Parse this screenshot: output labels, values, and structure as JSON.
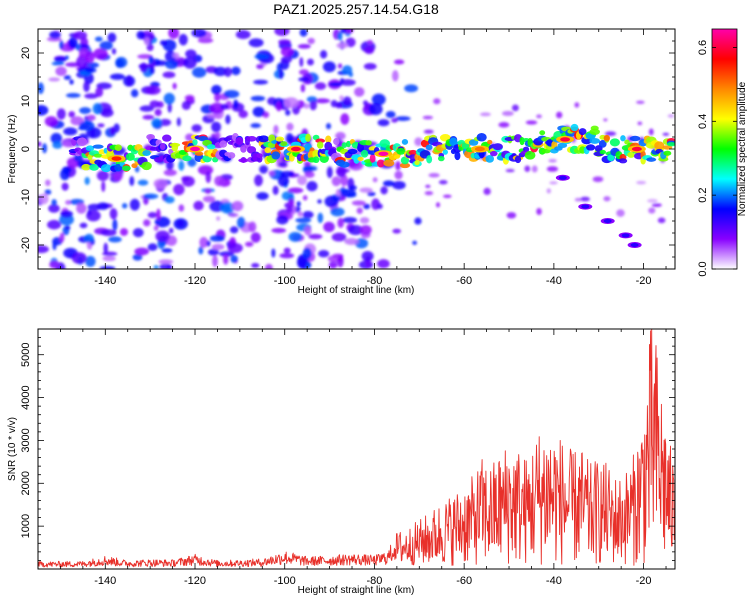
{
  "title": "PAZ1.2025.257.14.54.G18",
  "chart_data": [
    {
      "type": "heatmap",
      "xlabel": "Height of straight line (km)",
      "ylabel": "Frequency (Hz)",
      "xlim": [
        -155,
        -13
      ],
      "ylim": [
        -25,
        25
      ],
      "x_ticks": [
        -140,
        -120,
        -100,
        -80,
        -60,
        -40,
        -20
      ],
      "y_ticks": [
        -20,
        -10,
        0,
        10,
        20
      ],
      "colorbar": {
        "label": "Normalized spectral amplitude",
        "range": [
          0,
          0.65
        ],
        "ticks": [
          0,
          0.2,
          0.4,
          0.6
        ],
        "colormap": [
          "#ffffff",
          "#8800ff",
          "#0000ff",
          "#00ffff",
          "#00ff00",
          "#ffff00",
          "#ff8800",
          "#ff0000",
          "#ff00aa"
        ]
      },
      "ridges": [
        {
          "x_start": -145,
          "x_end": -130,
          "freq": -2,
          "amplitude": 0.55
        },
        {
          "x_start": -125,
          "x_end": -115,
          "freq": 0,
          "amplitude": 0.65
        },
        {
          "x_start": -105,
          "x_end": -90,
          "freq": 0,
          "amplitude": 0.6
        },
        {
          "x_start": -88,
          "x_end": -68,
          "freq": -1,
          "amplitude": 0.65
        },
        {
          "x_start": -68,
          "x_end": -45,
          "freq": 0,
          "amplitude": 0.5
        },
        {
          "x_start": -45,
          "x_end": -30,
          "freq": 2,
          "amplitude": 0.6
        },
        {
          "x_start": -30,
          "x_end": -13,
          "freq": 0,
          "amplitude": 0.6
        }
      ],
      "trend": {
        "x": [
          -38,
          -33,
          -28,
          -24,
          -22
        ],
        "freq": [
          -6,
          -12,
          -15,
          -18,
          -20
        ]
      }
    },
    {
      "type": "line",
      "xlabel": "Height of straight line (km)",
      "ylabel": "SNR (10 * v/v)",
      "xlim": [
        -155,
        -13
      ],
      "ylim": [
        0,
        5600
      ],
      "x_ticks": [
        -140,
        -120,
        -100,
        -80,
        -60,
        -40,
        -20
      ],
      "y_ticks": [
        1000,
        2000,
        3000,
        4000,
        5000
      ],
      "series": [
        {
          "color": "#e8302a",
          "x": [
            -155,
            -145,
            -140,
            -135,
            -130,
            -125,
            -120,
            -115,
            -110,
            -105,
            -100,
            -95,
            -90,
            -85,
            -80,
            -77,
            -75,
            -72,
            -70,
            -68,
            -65,
            -62,
            -60,
            -58,
            -56,
            -54,
            -52,
            -50,
            -48,
            -46,
            -44,
            -42,
            -40,
            -38,
            -36,
            -34,
            -32,
            -30,
            -28,
            -26,
            -24,
            -22,
            -20,
            -19,
            -18,
            -17,
            -16,
            -15,
            -14,
            -13
          ],
          "y": [
            120,
            130,
            220,
            140,
            160,
            150,
            240,
            140,
            150,
            170,
            300,
            200,
            220,
            250,
            220,
            300,
            600,
            700,
            800,
            900,
            1100,
            1250,
            1400,
            1500,
            1800,
            1700,
            1900,
            2100,
            2000,
            1800,
            2200,
            2400,
            2300,
            2100,
            1900,
            2000,
            1700,
            1800,
            1700,
            1500,
            1600,
            1900,
            2700,
            3500,
            4200,
            3600,
            3000,
            2500,
            2000,
            1700
          ]
        }
      ]
    }
  ]
}
